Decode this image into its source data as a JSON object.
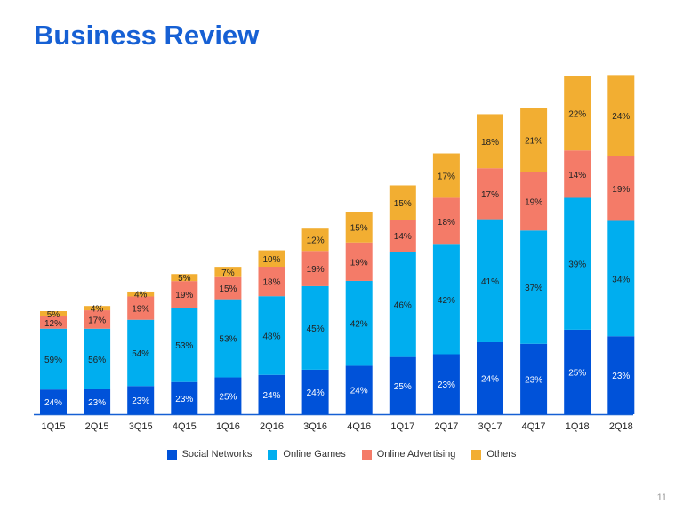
{
  "title": "Business Review",
  "page_number": "11",
  "chart_data": {
    "type": "bar",
    "stacked": true,
    "title": "Business Review",
    "xlabel": "",
    "ylabel": "",
    "categories": [
      "1Q15",
      "2Q15",
      "3Q15",
      "4Q15",
      "1Q16",
      "2Q16",
      "3Q16",
      "4Q16",
      "1Q17",
      "2Q17",
      "3Q17",
      "4Q17",
      "1Q18",
      "2Q18"
    ],
    "relative_totals": [
      100,
      105,
      119,
      136,
      143,
      159,
      180,
      196,
      222,
      253,
      291,
      297,
      328,
      329
    ],
    "series": [
      {
        "name": "Social Networks",
        "color": "#0052d9",
        "values": [
          24,
          23,
          23,
          23,
          25,
          24,
          24,
          24,
          25,
          23,
          24,
          23,
          25,
          23
        ]
      },
      {
        "name": "Online Games",
        "color": "#00aeef",
        "values": [
          59,
          56,
          54,
          53,
          53,
          48,
          45,
          42,
          46,
          42,
          41,
          37,
          39,
          34
        ]
      },
      {
        "name": "Online Advertising",
        "color": "#f47b68",
        "values": [
          12,
          17,
          19,
          19,
          15,
          18,
          19,
          19,
          14,
          18,
          17,
          19,
          14,
          19
        ]
      },
      {
        "name": "Others",
        "color": "#f2ae32",
        "values": [
          5,
          4,
          4,
          5,
          7,
          10,
          12,
          15,
          15,
          17,
          18,
          21,
          22,
          24
        ]
      }
    ],
    "legend_position": "bottom",
    "grid": false
  }
}
